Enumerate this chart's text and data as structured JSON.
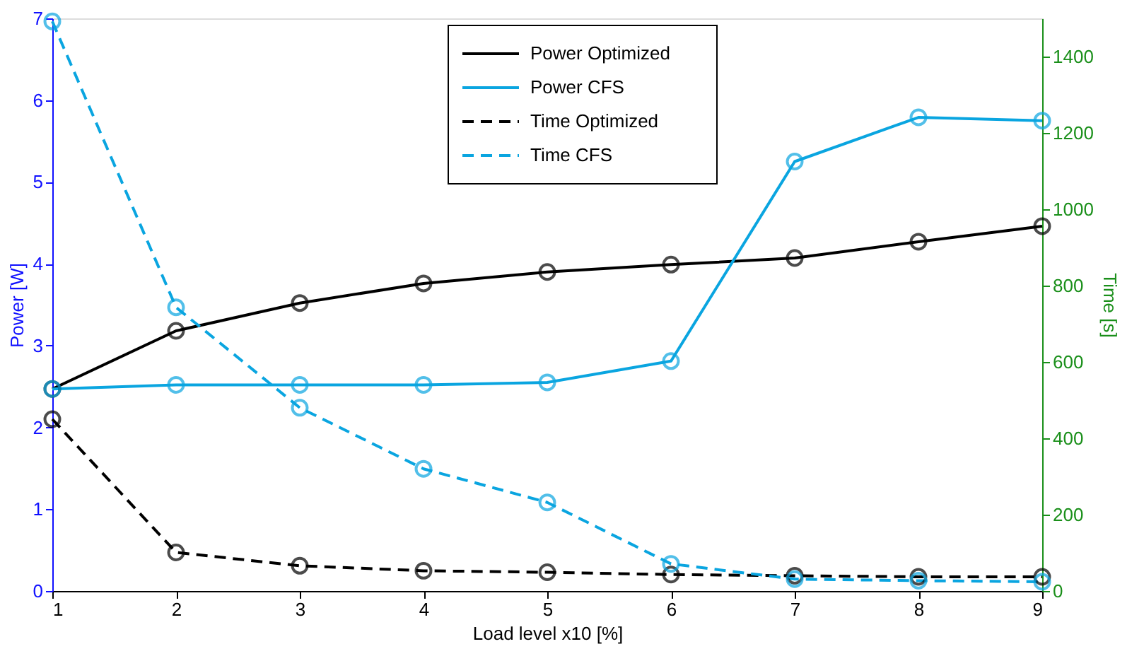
{
  "chart_data": {
    "type": "line",
    "xlabel": "Load level x10 [%]",
    "ylabel": "Power [W]",
    "y2label": "Time [s]",
    "x": [
      1,
      2,
      3,
      4,
      5,
      6,
      7,
      8,
      9
    ],
    "xlim": [
      1,
      9
    ],
    "xticks": [
      1,
      2,
      3,
      4,
      5,
      6,
      7,
      8,
      9
    ],
    "ylim": [
      0,
      7
    ],
    "yticks": [
      0,
      1,
      2,
      3,
      4,
      5,
      6,
      7
    ],
    "y2lim": [
      0,
      1500
    ],
    "y2ticks": [
      0,
      200,
      400,
      600,
      800,
      1000,
      1200,
      1400
    ],
    "grid": false,
    "legend": "top",
    "marker": "circle",
    "series": [
      {
        "name": "Power Optimized",
        "color": "#000000",
        "line_style": "solid",
        "values": [
          2.47,
          3.18,
          3.52,
          3.76,
          3.9,
          3.99,
          4.07,
          4.27,
          4.46
        ]
      },
      {
        "name": "Power CFS",
        "color": "#0aa5e0",
        "line_style": "solid",
        "values": [
          2.47,
          2.52,
          2.52,
          2.52,
          2.55,
          2.81,
          5.25,
          5.79,
          5.75
        ]
      },
      {
        "name": "Time Optimized",
        "color": "#000000",
        "line_style": "dashed",
        "axis": "y2",
        "values": [
          450,
          101,
          66,
          53,
          49,
          43,
          40,
          37,
          37
        ]
      },
      {
        "name": "Time CFS",
        "color": "#0aa5e0",
        "line_style": "dashed",
        "axis": "y2",
        "values": [
          1492,
          743,
          480,
          320,
          232,
          71,
          31,
          27,
          24
        ]
      }
    ]
  }
}
